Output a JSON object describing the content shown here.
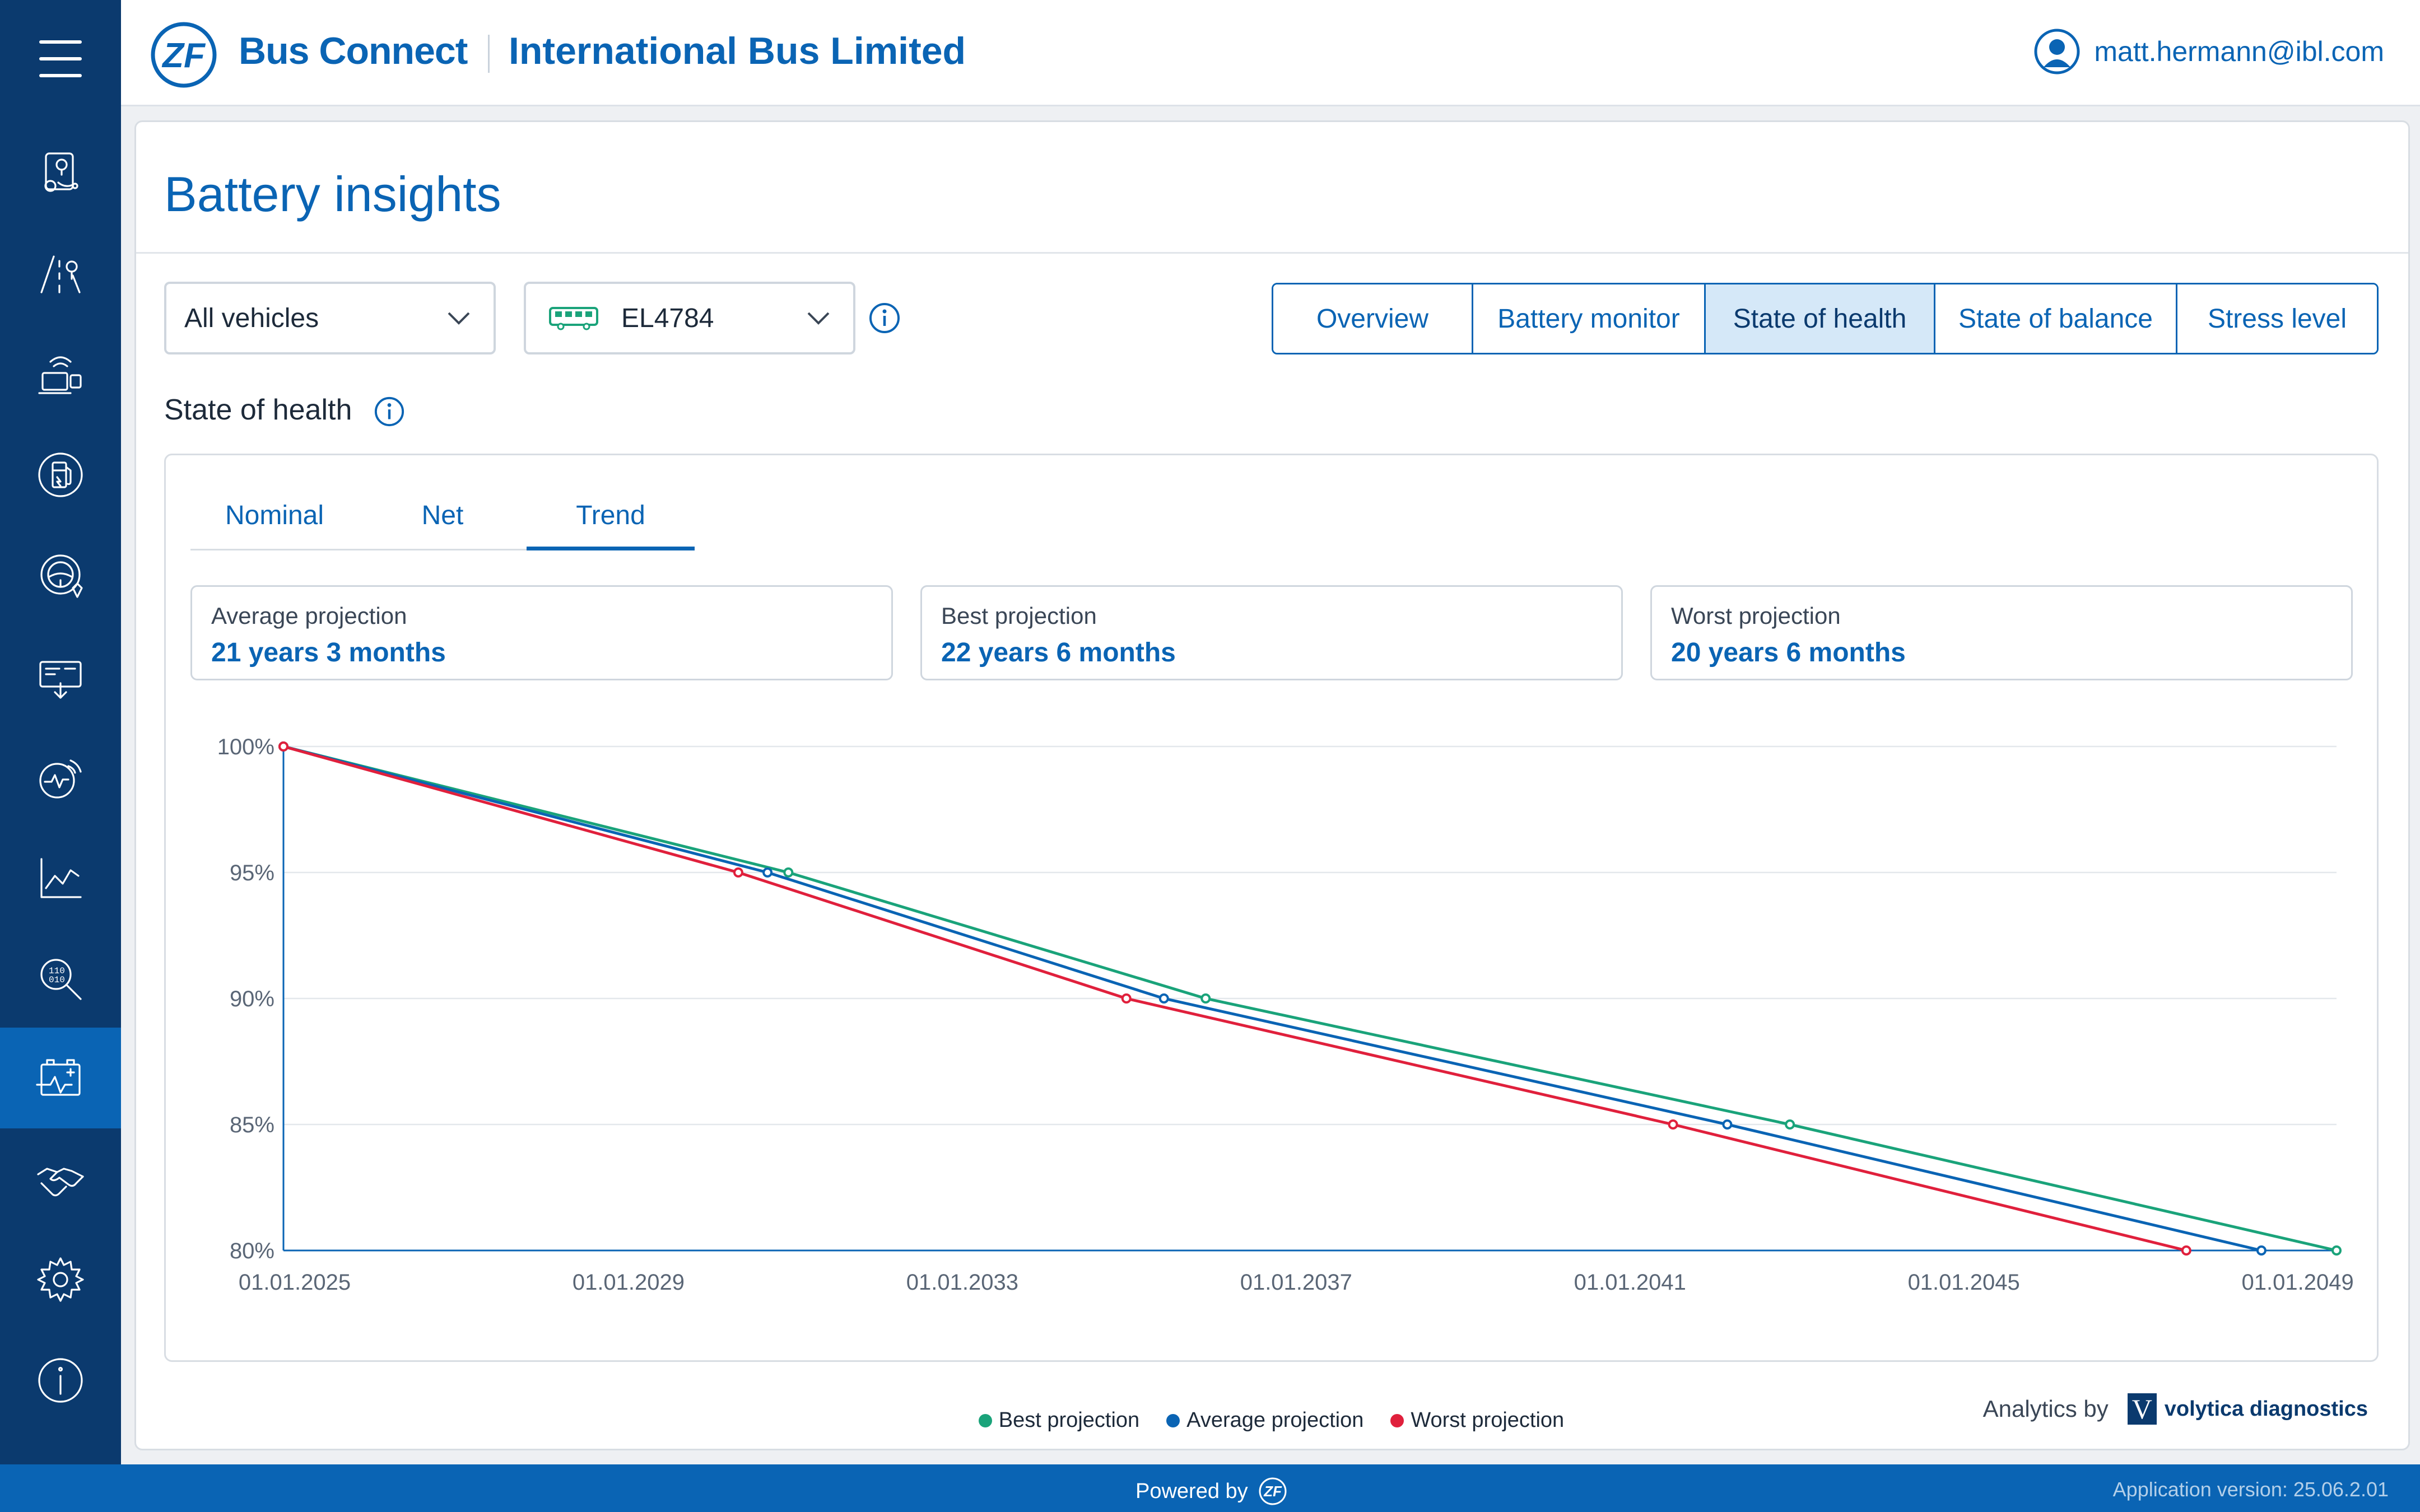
{
  "header": {
    "brand": "Bus Connect",
    "company": "International Bus Limited",
    "user_email": "matt.hermann@ibl.com"
  },
  "sidebar": {
    "items": [
      {
        "icon": "location-map-icon"
      },
      {
        "icon": "route-icon"
      },
      {
        "icon": "remote-device-icon"
      },
      {
        "icon": "fuel-station-icon"
      },
      {
        "icon": "driver-steering-icon"
      },
      {
        "icon": "display-download-icon"
      },
      {
        "icon": "signal-monitor-icon"
      },
      {
        "icon": "line-chart-icon"
      },
      {
        "icon": "binary-search-icon"
      },
      {
        "icon": "battery-health-icon",
        "active": true
      },
      {
        "icon": "handshake-icon"
      },
      {
        "icon": "settings-gear-icon"
      },
      {
        "icon": "info-icon"
      }
    ]
  },
  "page": {
    "title": "Battery insights",
    "vehicles_select": "All vehicles",
    "vehicle_select": "EL4784",
    "tabs": [
      "Overview",
      "Battery monitor",
      "State of health",
      "State of balance",
      "Stress level"
    ],
    "active_tab": "State of health",
    "section_title": "State of health",
    "subtabs": [
      "Nominal",
      "Net",
      "Trend"
    ],
    "active_subtab": "Trend",
    "projections": [
      {
        "label": "Average projection",
        "value": "21 years 3 months"
      },
      {
        "label": "Best projection",
        "value": "22 years 6 months"
      },
      {
        "label": "Worst projection",
        "value": "20 years 6 months"
      }
    ],
    "analytics_by": "Analytics by",
    "analytics_brand": "volytica diagnostics"
  },
  "footer": {
    "powered_by": "Powered by",
    "version": "Application version: 25.06.2.01"
  },
  "colors": {
    "primary": "#0a64b4",
    "sidebar": "#0b3a6e",
    "best": "#1aa37a",
    "average": "#0a64b4",
    "worst": "#e0203c"
  },
  "chart_data": {
    "type": "line",
    "x_ticks": [
      "01.01.2025",
      "01.01.2029",
      "01.01.2033",
      "01.01.2037",
      "01.01.2041",
      "01.01.2045",
      "01.01.2049"
    ],
    "y_ticks": [
      "100%",
      "95%",
      "90%",
      "85%",
      "80%"
    ],
    "xlim": [
      2025.0,
      2049.6
    ],
    "ylim": [
      80,
      100
    ],
    "grid": true,
    "legend_position": "bottom-center",
    "series": [
      {
        "name": "Best projection",
        "color": "#1aa37a",
        "points": [
          [
            2025.0,
            100
          ],
          [
            2031.05,
            95
          ],
          [
            2036.05,
            90
          ],
          [
            2043.05,
            85
          ],
          [
            2049.6,
            80
          ]
        ]
      },
      {
        "name": "Average projection",
        "color": "#0a64b4",
        "points": [
          [
            2025.0,
            100
          ],
          [
            2030.8,
            95
          ],
          [
            2035.55,
            90
          ],
          [
            2042.3,
            85
          ],
          [
            2048.7,
            80
          ]
        ]
      },
      {
        "name": "Worst projection",
        "color": "#e0203c",
        "points": [
          [
            2025.0,
            100
          ],
          [
            2030.45,
            95
          ],
          [
            2035.1,
            90
          ],
          [
            2041.65,
            85
          ],
          [
            2047.8,
            80
          ]
        ]
      }
    ]
  }
}
